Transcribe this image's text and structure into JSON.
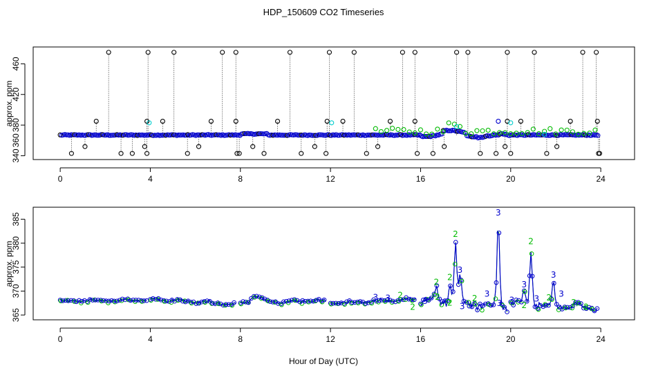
{
  "figure": {
    "title": "HDP_150609  CO2 Timeseries",
    "xlabel": "Hour of Day (UTC)"
  },
  "colors": {
    "black": "#000000",
    "blue": "#0000cc",
    "cyan": "#00cccc",
    "green": "#00bb00",
    "axis": "#000000"
  },
  "chart_data": [
    {
      "type": "scatter",
      "name": "top-panel",
      "ylabel": "approx. ppm",
      "xlim": [
        -1.2,
        25.5
      ],
      "ylim": [
        335,
        482
      ],
      "xticks": [
        0,
        4,
        8,
        12,
        16,
        20,
        24
      ],
      "yticks": [
        340,
        380,
        420,
        460
      ],
      "ytick_labels": [
        "340",
        "360",
        "380",
        "420",
        "460"
      ],
      "ytick_label_values": [
        340,
        360,
        380,
        420,
        460
      ],
      "baseline": 367,
      "spikes_high": [
        2.15,
        3.9,
        5.05,
        7.2,
        7.8,
        10.2,
        11.95,
        13.05,
        15.2,
        15.75,
        17.6,
        18.1,
        19.85,
        21.05,
        23.2,
        23.8
      ],
      "spikes_high_value": 475,
      "spikes_mid": [
        1.6,
        3.85,
        4.55,
        6.7,
        7.8,
        9.65,
        11.85,
        12.55,
        14.65,
        15.75,
        20.45,
        19.85,
        22.65,
        23.85
      ],
      "spikes_mid_value": 385,
      "spikes_low": [
        0.5,
        1.1,
        2.7,
        3.2,
        3.75,
        3.85,
        5.65,
        6.15,
        7.85,
        7.95,
        8.55,
        9.05,
        10.7,
        11.3,
        11.8,
        13.6,
        14.1,
        15.85,
        16.55,
        17.05,
        18.65,
        19.35,
        19.75,
        20.0,
        21.6,
        22.05,
        23.9,
        23.95
      ],
      "spikes_low_value": 343,
      "spikes_low2_value": 352,
      "cyan_points": [
        {
          "x": 3.95,
          "y": 383
        },
        {
          "x": 12.05,
          "y": 383
        },
        {
          "x": 20.0,
          "y": 383
        },
        {
          "x": 17.6,
          "y": 378
        },
        {
          "x": 21.5,
          "y": 368
        }
      ],
      "series": [
        {
          "name": "series-1",
          "color": "black",
          "marker": "circle"
        },
        {
          "name": "series-2",
          "color": "blue",
          "marker": "circle"
        },
        {
          "name": "series-3",
          "color": "cyan",
          "marker": "circle"
        },
        {
          "name": "series-4",
          "color": "green",
          "marker": "circle"
        }
      ]
    },
    {
      "type": "line",
      "name": "bottom-panel",
      "ylabel": "approx. ppm",
      "xlim": [
        -1.2,
        25.5
      ],
      "ylim": [
        364,
        387.5
      ],
      "xticks": [
        0,
        4,
        8,
        12,
        16,
        20,
        24
      ],
      "yticks": [
        365,
        370,
        375,
        380,
        385
      ],
      "series": [
        {
          "name": "series-2",
          "color": "green",
          "marker": "2"
        },
        {
          "name": "series-3",
          "color": "blue",
          "marker": "3"
        }
      ],
      "peaks": [
        {
          "x": 17.55,
          "y": 381,
          "series": "series-2"
        },
        {
          "x": 19.45,
          "y": 385.5,
          "series": "series-3"
        },
        {
          "x": 20.9,
          "y": 379.5,
          "series": "series-2"
        },
        {
          "x": 17.75,
          "y": 373.5,
          "series": "series-3"
        },
        {
          "x": 21.9,
          "y": 372.5,
          "series": "series-3"
        },
        {
          "x": 20.6,
          "y": 370.5,
          "series": "series-3"
        },
        {
          "x": 16.7,
          "y": 371,
          "series": "series-2"
        },
        {
          "x": 17.3,
          "y": 372,
          "series": "series-2"
        }
      ],
      "segments": [
        {
          "x0": 0.0,
          "x1": 3.9,
          "y0": 368.0,
          "y1": 368.1,
          "wave": 0.4
        },
        {
          "x0": 4.0,
          "x1": 7.8,
          "y0": 368.3,
          "y1": 367.2,
          "wave": 0.5
        },
        {
          "x0": 8.0,
          "x1": 11.8,
          "y0": 367.5,
          "y1": 368.0,
          "wave": 0.5,
          "bump": {
            "x": 8.7,
            "h": 1.5
          }
        },
        {
          "x0": 12.0,
          "x1": 15.8,
          "y0": 367.5,
          "y1": 368.3,
          "wave": 0.5
        },
        {
          "x0": 16.0,
          "x1": 19.85,
          "y0": 368.0,
          "y1": 366.8,
          "wave": 1.4
        },
        {
          "x0": 20.0,
          "x1": 23.85,
          "y0": 367.5,
          "y1": 366.5,
          "wave": 1.1
        }
      ]
    }
  ]
}
